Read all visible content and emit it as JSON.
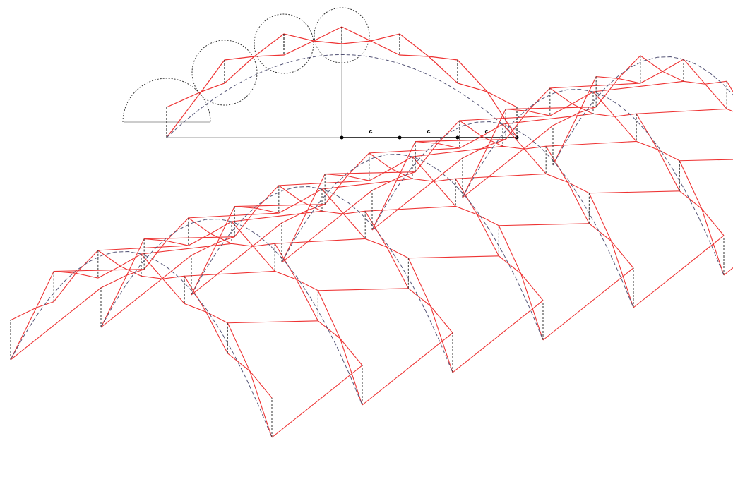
{
  "elevation": {
    "dimension_labels": [
      "c",
      "c",
      "c"
    ]
  }
}
